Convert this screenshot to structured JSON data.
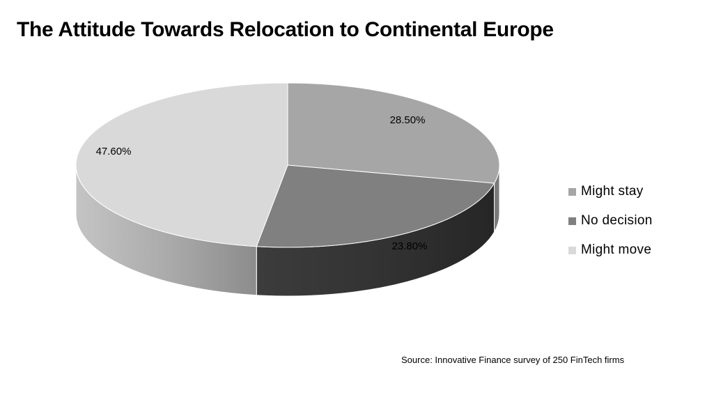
{
  "title": "The Attitude Towards Relocation to Continental Europe",
  "source": "Source: Innovative Finance survey of 250 FinTech firms",
  "chart_data": {
    "type": "pie",
    "style": "3d",
    "title": "The Attitude Towards Relocation to Continental Europe",
    "legend_position": "right",
    "slices": [
      {
        "label": "Might stay",
        "value": 28.5,
        "display": "28.50%",
        "color": "#a6a6a6"
      },
      {
        "label": "No decision",
        "value": 23.8,
        "display": "23.80%",
        "color": "#808080"
      },
      {
        "label": "Might move",
        "value": 47.6,
        "display": "47.60%",
        "color": "#d9d9d9"
      }
    ]
  }
}
